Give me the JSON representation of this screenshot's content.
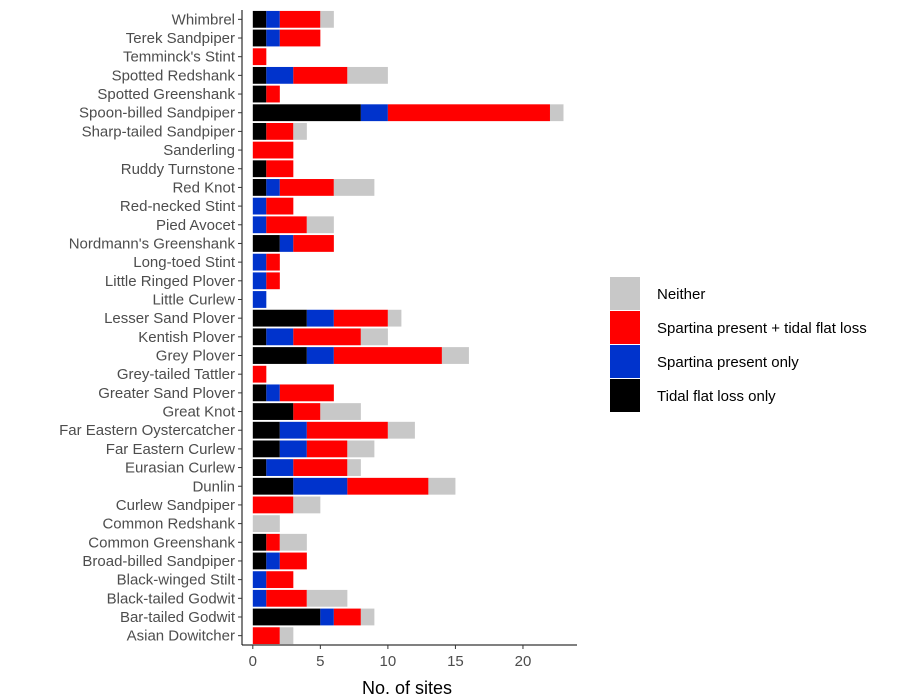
{
  "chart_data": {
    "type": "bar",
    "orientation": "horizontal",
    "stacked": true,
    "xlabel": "No. of sites",
    "ylabel": "",
    "xlim": [
      -0.8,
      24
    ],
    "xticks": [
      0,
      5,
      10,
      15,
      20
    ],
    "grid": false,
    "legend_position": "right",
    "categories": [
      "Whimbrel",
      "Terek Sandpiper",
      "Temminck's Stint",
      "Spotted Redshank",
      "Spotted Greenshank",
      "Spoon-billed Sandpiper",
      "Sharp-tailed Sandpiper",
      "Sanderling",
      "Ruddy Turnstone",
      "Red Knot",
      "Red-necked Stint",
      "Pied Avocet",
      "Nordmann's Greenshank",
      "Long-toed Stint",
      "Little Ringed Plover",
      "Little Curlew",
      "Lesser Sand Plover",
      "Kentish Plover",
      "Grey Plover",
      "Grey-tailed Tattler",
      "Greater Sand Plover",
      "Great Knot",
      "Far Eastern Oystercatcher",
      "Far Eastern Curlew",
      "Eurasian Curlew",
      "Dunlin",
      "Curlew Sandpiper",
      "Common Redshank",
      "Common Greenshank",
      "Broad-billed Sandpiper",
      "Black-winged Stilt",
      "Black-tailed Godwit",
      "Bar-tailed Godwit",
      "Asian Dowitcher"
    ],
    "series": [
      {
        "name": "Tidal flat loss only",
        "color": "#000000",
        "values": [
          1,
          1,
          0,
          1,
          1,
          8,
          1,
          0,
          1,
          1,
          0,
          0,
          2,
          0,
          0,
          0,
          4,
          1,
          4,
          0,
          1,
          3,
          2,
          2,
          1,
          3,
          0,
          0,
          1,
          1,
          0,
          0,
          5,
          0
        ]
      },
      {
        "name": "Spartina present only",
        "color": "#0033cc",
        "values": [
          1,
          1,
          0,
          2,
          0,
          2,
          0,
          0,
          0,
          1,
          1,
          1,
          1,
          1,
          1,
          1,
          2,
          2,
          2,
          0,
          1,
          0,
          2,
          2,
          2,
          4,
          0,
          0,
          0,
          1,
          1,
          1,
          1,
          0
        ]
      },
      {
        "name": "Spartina present + tidal flat loss",
        "color": "#ff0000",
        "values": [
          3,
          3,
          1,
          4,
          1,
          12,
          2,
          3,
          2,
          4,
          2,
          3,
          3,
          1,
          1,
          0,
          4,
          5,
          8,
          1,
          4,
          2,
          6,
          3,
          4,
          6,
          3,
          0,
          1,
          2,
          2,
          3,
          2,
          2
        ]
      },
      {
        "name": "Neither",
        "color": "#c8c8c8",
        "values": [
          1,
          0,
          0,
          3,
          0,
          1,
          1,
          0,
          0,
          3,
          0,
          2,
          0,
          0,
          0,
          0,
          1,
          2,
          2,
          0,
          0,
          3,
          2,
          2,
          1,
          2,
          2,
          2,
          2,
          0,
          0,
          3,
          1,
          1
        ]
      }
    ],
    "legend_order": [
      "Neither",
      "Spartina present + tidal flat loss",
      "Spartina present only",
      "Tidal flat loss only"
    ]
  }
}
